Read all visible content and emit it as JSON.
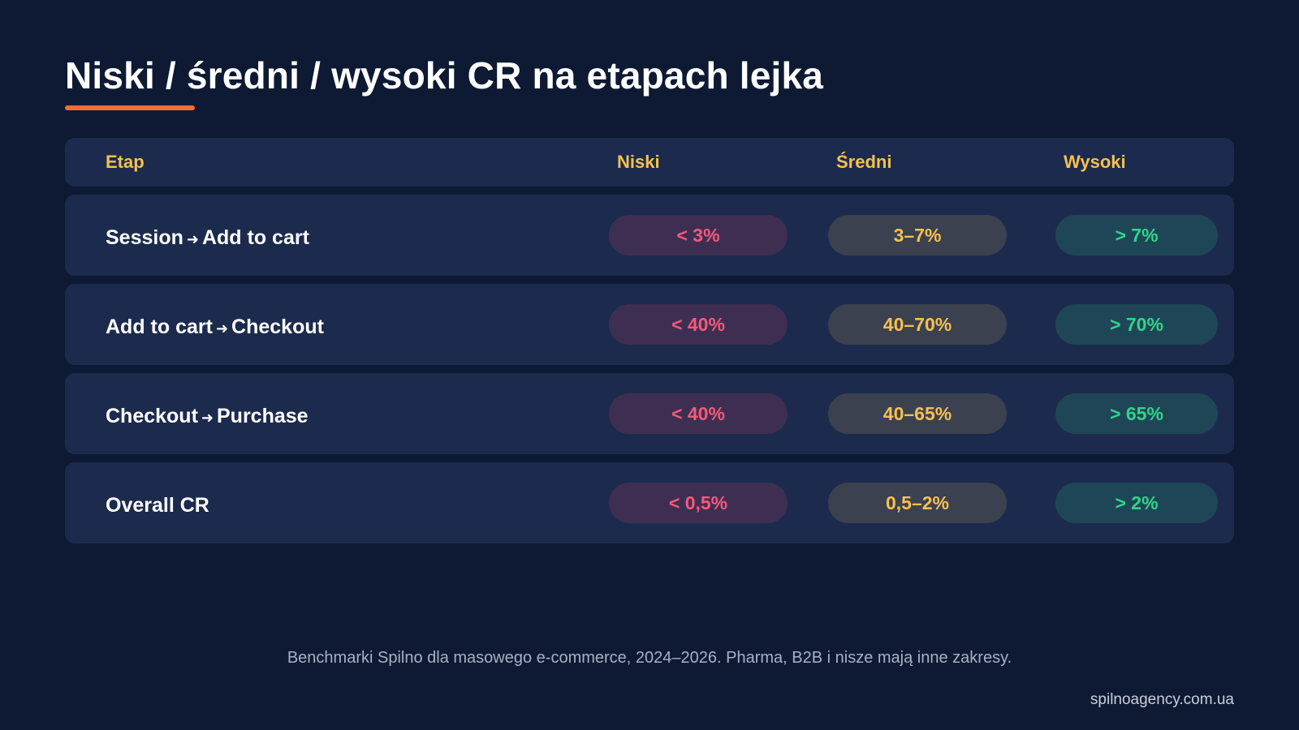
{
  "title": "Niski / średni / wysoki CR na etapach lejka",
  "colors": {
    "background": "#0e1a33",
    "row": "#1c2b4d",
    "accent_underline": "#f26b3a",
    "header_text": "#f5c04f",
    "low": "#f7587a",
    "mid": "#f5c04f",
    "high": "#2fd58a"
  },
  "table": {
    "headers": {
      "stage": "Etap",
      "low": "Niski",
      "mid": "Średni",
      "high": "Wysoki"
    },
    "rows": [
      {
        "from": "Session",
        "arrow": "➜",
        "to": "Add to cart",
        "low": "< 3%",
        "mid": "3–7%",
        "high": "> 7%"
      },
      {
        "from": "Add to cart",
        "arrow": "➜",
        "to": "Checkout",
        "low": "< 40%",
        "mid": "40–70%",
        "high": "> 70%"
      },
      {
        "from": "Checkout",
        "arrow": "➜",
        "to": "Purchase",
        "low": "< 40%",
        "mid": "40–65%",
        "high": "> 65%"
      },
      {
        "from": "Overall CR",
        "arrow": "",
        "to": "",
        "low": "< 0,5%",
        "mid": "0,5–2%",
        "high": "> 2%"
      }
    ]
  },
  "footnote": "Benchmarki Spilno dla masowego e-commerce, 2024–2026. Pharma, B2B i nisze mają inne zakresy.",
  "site": "spilnoagency.com.ua"
}
